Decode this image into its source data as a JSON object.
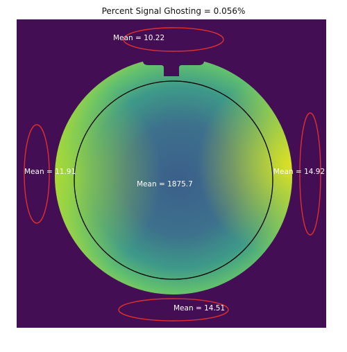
{
  "figure": {
    "title": "Percent Signal Ghosting = 0.056%"
  },
  "colors": {
    "background": "#430e54",
    "phantom_center": "#3b6a8c",
    "phantom_mid": "#47a381",
    "phantom_edge": "#c7e02e",
    "ring": "#000000",
    "roi_outline": "#e0302e",
    "label": "#ffffff"
  },
  "regions": {
    "center": {
      "label": "Mean = 1875.7"
    },
    "top": {
      "label": "Mean = 10.22"
    },
    "left": {
      "label": "Mean = 11.91"
    },
    "right": {
      "label": "Mean = 14.92"
    },
    "bottom": {
      "label": "Mean = 14.51"
    }
  }
}
